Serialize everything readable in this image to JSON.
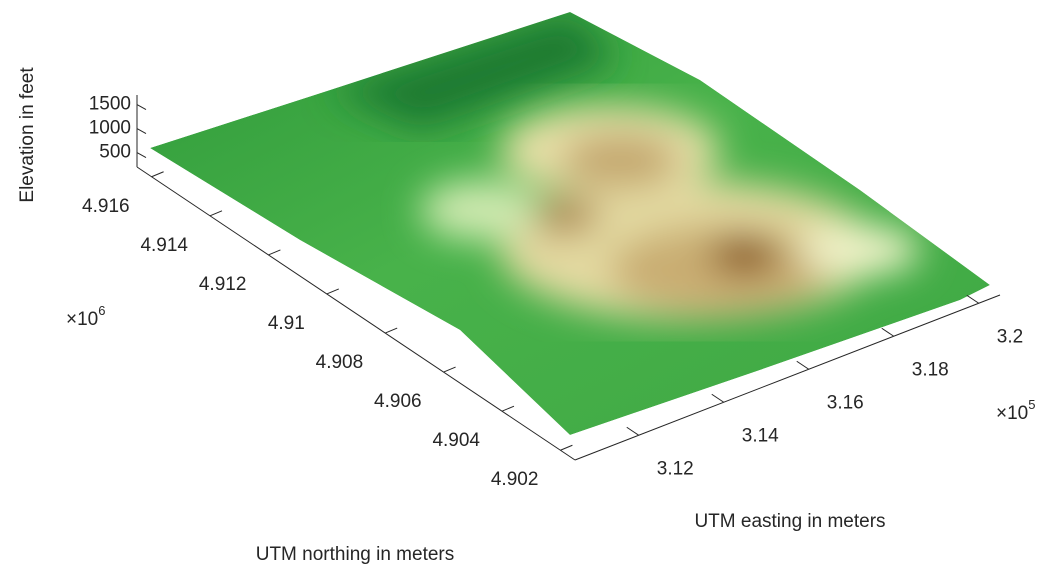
{
  "chart_data": {
    "type": "surface",
    "xlabel": "UTM easting in meters",
    "ylabel": "UTM northing in meters",
    "zlabel": "Elevation in feet",
    "xlim": [
      3.105,
      3.205
    ],
    "xticks": [
      3.12,
      3.14,
      3.16,
      3.18,
      3.2
    ],
    "x_multiplier": "×10",
    "x_exponent": 5,
    "ylim": [
      4.9015,
      4.9165
    ],
    "yticks": [
      4.902,
      4.904,
      4.906,
      4.908,
      4.91,
      4.912,
      4.914,
      4.916
    ],
    "y_multiplier": "×10",
    "y_exponent": 6,
    "zlim": [
      200,
      1700
    ],
    "zticks": [
      500,
      1000,
      1500
    ]
  }
}
